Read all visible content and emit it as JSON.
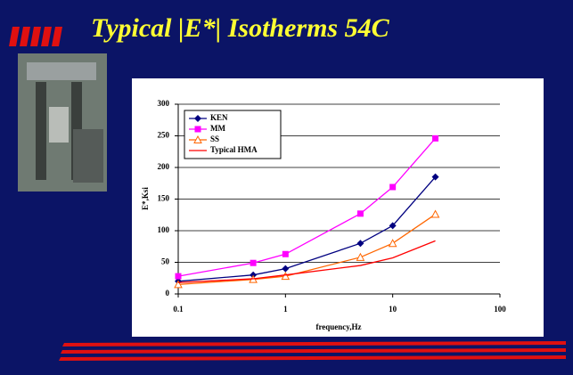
{
  "slide": {
    "title": "Typical |E*| Isotherms 54C"
  },
  "chart_data": {
    "type": "line",
    "xlabel": "frequency,Hz",
    "ylabel": "E*,Ksi",
    "x": [
      0.1,
      0.5,
      1,
      5,
      10,
      25
    ],
    "series": [
      {
        "name": "KEN",
        "color": "#000080",
        "marker": "diamond",
        "values": [
          20,
          30,
          40,
          80,
          108,
          185
        ]
      },
      {
        "name": "MM",
        "color": "#ff00ff",
        "marker": "square",
        "values": [
          28,
          49,
          63,
          127,
          169,
          246
        ]
      },
      {
        "name": "SS",
        "color": "#ff6600",
        "marker": "triangle",
        "values": [
          15,
          23,
          28,
          58,
          80,
          126
        ]
      },
      {
        "name": "Typical HMA",
        "color": "#ff0000",
        "marker": "none",
        "values": [
          18,
          24,
          30,
          45,
          57,
          84
        ]
      }
    ],
    "xlim": [
      0.1,
      100
    ],
    "xticks": [
      0.1,
      1,
      10,
      100
    ],
    "xlog": true,
    "ylim": [
      0,
      300
    ],
    "yticks": [
      0,
      50,
      100,
      150,
      200,
      250,
      300
    ],
    "grid": true,
    "legend": "upper-left"
  }
}
